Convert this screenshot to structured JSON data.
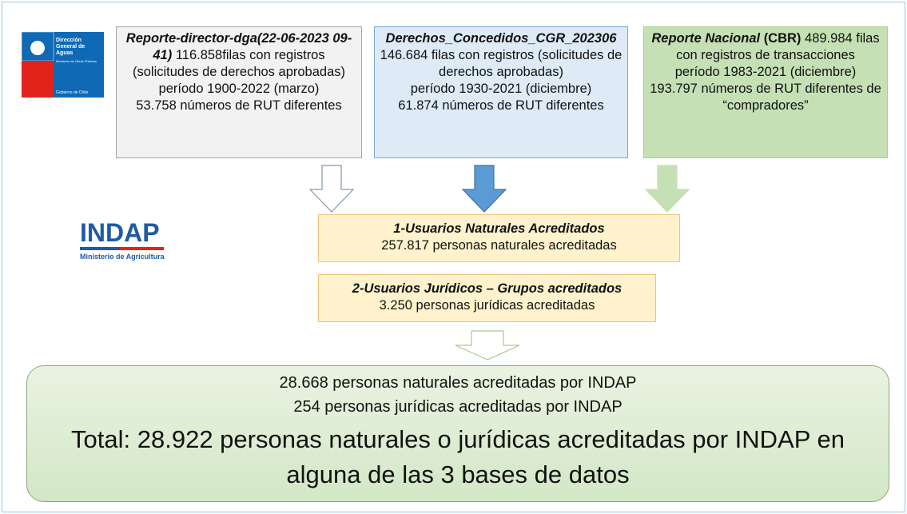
{
  "logos": {
    "dga": {
      "lines": [
        "Dirección",
        "General de",
        "Aguas",
        "Ministerio de Obras Públicas"
      ],
      "footer": "Gobierno de Chile"
    },
    "indap": {
      "name": "INDAP",
      "subtitle": "Ministerio de Agricultura"
    }
  },
  "sources": [
    {
      "title": "Reporte-director-dga(22-06-2023 09-41)",
      "lines": [
        "116.858filas con registros (solicitudes de derechos aprobadas)",
        "período 1900-2022 (marzo)",
        "53.758 números de RUT diferentes"
      ]
    },
    {
      "title": "Derechos_Concedidos_CGR_202306",
      "lines": [
        "146.684 filas con registros (solicitudes de derechos aprobadas)",
        "período 1930-2021 (diciembre)",
        "61.874 números de RUT diferentes"
      ]
    },
    {
      "title": "Reporte Nacional",
      "tag": "(CBR)",
      "lines": [
        "489.984 filas con registros de transacciones",
        "período 1983-2021 (diciembre)",
        "193.797 números de RUT diferentes de “compradores”"
      ]
    }
  ],
  "groups": [
    {
      "title": "1-Usuarios Naturales Acreditados",
      "text": "257.817 personas naturales  acreditadas"
    },
    {
      "title": "2-Usuarios Jurídicos – Grupos acreditados",
      "text": "3.250 personas jurídicas acreditadas"
    }
  ],
  "result": {
    "lines": [
      "28.668 personas naturales acreditadas por INDAP",
      "254 personas jurídicas acreditadas por INDAP"
    ],
    "total": "Total: 28.922 personas naturales o jurídicas acreditadas por INDAP en alguna de las 3 bases de datos"
  }
}
